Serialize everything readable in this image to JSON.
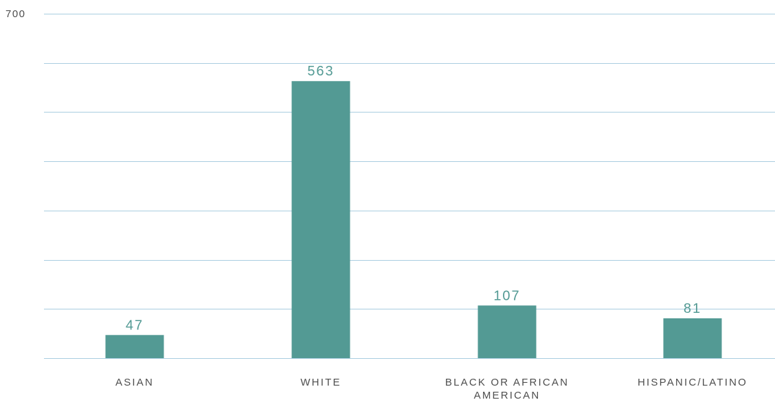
{
  "colors": {
    "bar": "#539a94",
    "grid": "#a9cde0",
    "data_label": "#539a94",
    "axis_text": "#4d4d4d"
  },
  "chart_data": {
    "type": "bar",
    "title": "",
    "xlabel": "",
    "ylabel": "",
    "ylim": [
      0,
      700
    ],
    "y_ticks_visible": [
      700
    ],
    "grid": true,
    "categories": [
      "ASIAN",
      "WHITE",
      "BLACK OR AFRICAN AMERICAN",
      "HISPANIC/LATINO"
    ],
    "category_label_lines": [
      [
        "ASIAN"
      ],
      [
        "WHITE"
      ],
      [
        "BLACK OR AFRICAN",
        "AMERICAN"
      ],
      [
        "HISPANIC/LATINO"
      ]
    ],
    "values": [
      47,
      563,
      107,
      81
    ],
    "data_labels": [
      "47",
      "563",
      "107",
      "81"
    ]
  }
}
